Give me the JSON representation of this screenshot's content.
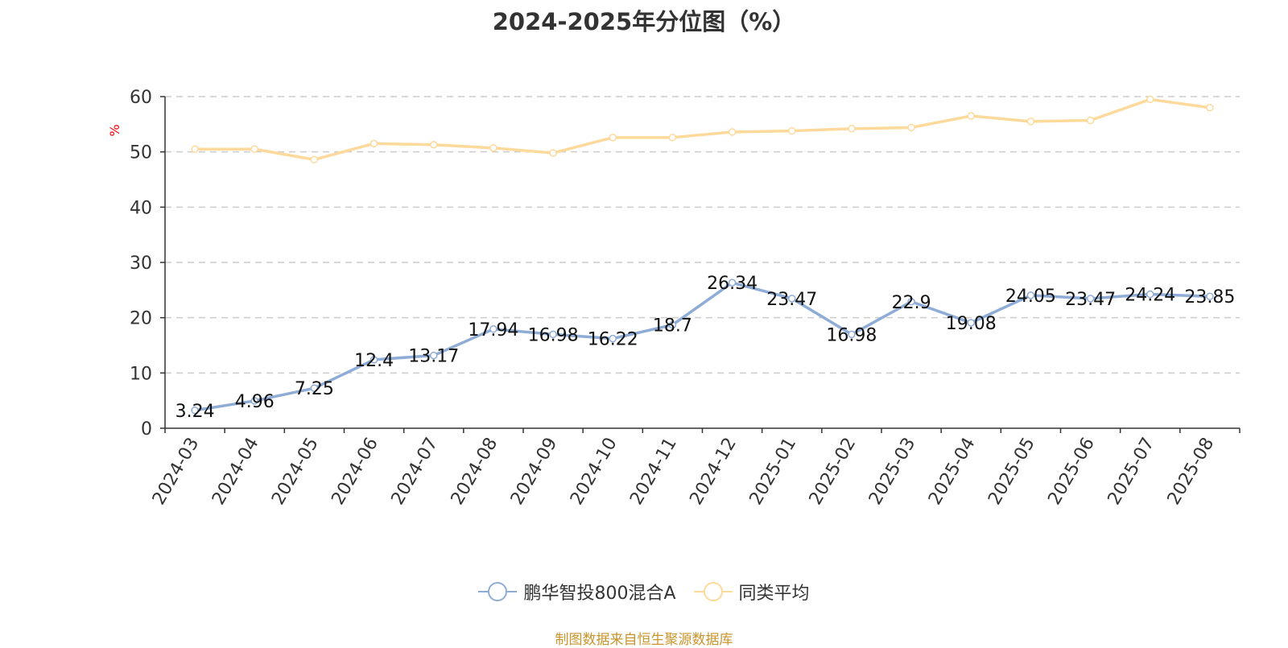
{
  "chart_data": {
    "type": "line",
    "title": "2024-2025年分位图（%）",
    "ylabel": "%",
    "xlabel": "",
    "ylim": [
      0,
      60
    ],
    "yticks": [
      0,
      10,
      20,
      30,
      40,
      50,
      60
    ],
    "grid": true,
    "legend_position": "bottom",
    "categories": [
      "2024-03",
      "2024-04",
      "2024-05",
      "2024-06",
      "2024-07",
      "2024-08",
      "2024-09",
      "2024-10",
      "2024-11",
      "2024-12",
      "2025-01",
      "2025-02",
      "2025-03",
      "2025-04",
      "2025-05",
      "2025-06",
      "2025-07",
      "2025-08"
    ],
    "series": [
      {
        "name": "鹏华智投800混合A",
        "color": "#8eacd6",
        "show_labels": true,
        "values": [
          3.24,
          4.96,
          7.25,
          12.4,
          13.17,
          17.94,
          16.98,
          16.22,
          18.7,
          26.34,
          23.47,
          16.98,
          22.9,
          19.08,
          24.05,
          23.47,
          24.24,
          23.85
        ]
      },
      {
        "name": "同类平均",
        "color": "#fdd99b",
        "show_labels": false,
        "values": [
          50.5,
          50.5,
          48.6,
          51.5,
          51.3,
          50.7,
          49.8,
          52.6,
          52.6,
          53.6,
          53.8,
          54.2,
          54.4,
          56.5,
          55.5,
          55.7,
          59.5,
          58.0
        ]
      }
    ]
  },
  "source": "制图数据来自恒生聚源数据库"
}
